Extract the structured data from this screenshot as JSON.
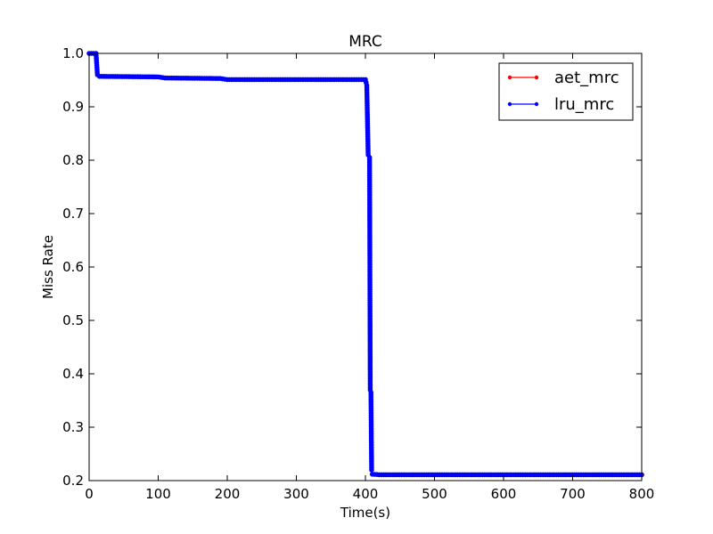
{
  "chart_data": {
    "type": "line",
    "title": "MRC",
    "xlabel": "Time(s)",
    "ylabel": "Miss Rate",
    "xlim": [
      0,
      800
    ],
    "ylim": [
      0.2,
      1.0
    ],
    "x_ticks": [
      0,
      100,
      200,
      300,
      400,
      500,
      600,
      700,
      800
    ],
    "y_ticks": [
      0.2,
      0.3,
      0.4,
      0.5,
      0.6,
      0.7,
      0.8,
      0.9,
      1.0
    ],
    "x_tick_labels": [
      "0",
      "100",
      "200",
      "300",
      "400",
      "500",
      "600",
      "700",
      "800"
    ],
    "y_tick_labels": [
      "0.2",
      "0.3",
      "0.4",
      "0.5",
      "0.6",
      "0.7",
      "0.8",
      "0.9",
      "1.0"
    ],
    "grid": false,
    "legend_position": "top-right",
    "series": [
      {
        "name": "aet_mrc",
        "color": "#ff0000",
        "marker": "dot",
        "x": [
          0,
          10,
          12,
          15,
          100,
          110,
          190,
          200,
          400,
          402,
          404,
          406,
          407,
          408,
          408.3,
          408.6,
          409,
          410,
          420,
          800
        ],
        "y": [
          1.0,
          1.0,
          0.96,
          0.957,
          0.956,
          0.954,
          0.953,
          0.951,
          0.951,
          0.94,
          0.81,
          0.805,
          0.37,
          0.36,
          0.313,
          0.275,
          0.22,
          0.212,
          0.211,
          0.211
        ]
      },
      {
        "name": "lru_mrc",
        "color": "#0000ff",
        "marker": "dot",
        "x": [
          0,
          10,
          12,
          15,
          100,
          110,
          190,
          200,
          400,
          402,
          404,
          406,
          407,
          408,
          408.6,
          409,
          410,
          420,
          800
        ],
        "y": [
          1.0,
          1.0,
          0.96,
          0.957,
          0.956,
          0.954,
          0.953,
          0.951,
          0.951,
          0.94,
          0.81,
          0.805,
          0.37,
          0.365,
          0.275,
          0.22,
          0.212,
          0.211,
          0.211
        ]
      }
    ]
  }
}
